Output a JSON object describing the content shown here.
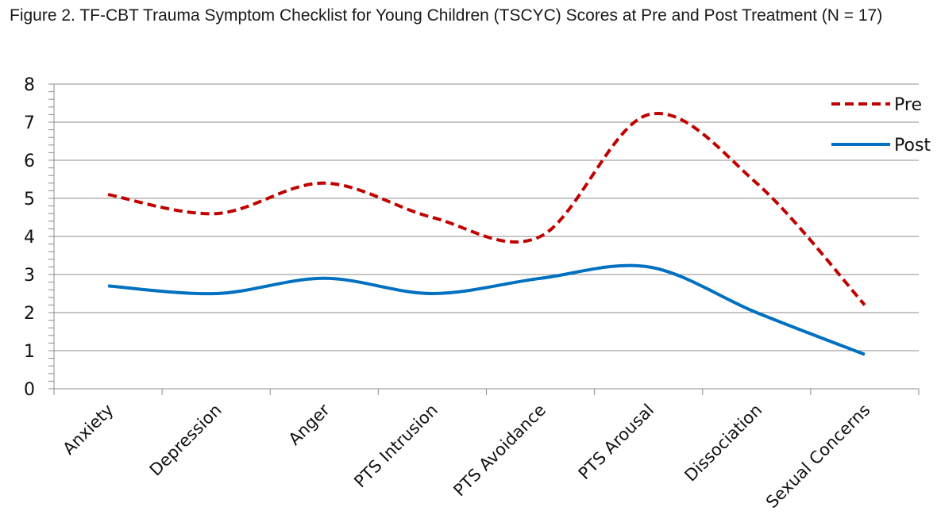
{
  "chart_data": {
    "type": "line",
    "title": "Figure 2. TF-CBT Trauma Symptom Checklist for Young Children (TSCYC) Scores at Pre and Post Treatment (N = 17)",
    "categories": [
      "Anxiety",
      "Depression",
      "Anger",
      "PTS Intrusion",
      "PTS Avoidance",
      "PTS Arousal",
      "Dissociation",
      "Sexual Concerns"
    ],
    "series": [
      {
        "name": "Pre",
        "values": [
          5.1,
          4.6,
          5.4,
          4.5,
          4.0,
          7.2,
          5.4,
          2.2
        ],
        "color": "#c00000",
        "style": "dashed"
      },
      {
        "name": "Post",
        "values": [
          2.7,
          2.5,
          2.9,
          2.5,
          2.9,
          3.2,
          2.0,
          0.9
        ],
        "color": "#0070c0",
        "style": "solid"
      }
    ],
    "ylim": [
      0,
      8
    ],
    "yticks": [
      0,
      1,
      2,
      3,
      4,
      5,
      6,
      7,
      8
    ],
    "grid": true,
    "smooth": true,
    "legend": "right"
  }
}
